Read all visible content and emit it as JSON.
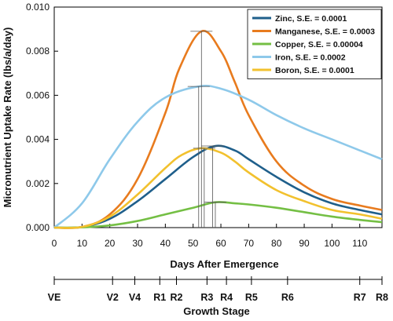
{
  "chart_data": {
    "type": "line",
    "xlabel": "Days After Emergence",
    "ylabel": "Micronutrient Uptake Rate (lbs/a/day)",
    "xlim": [
      0,
      118
    ],
    "ylim": [
      0,
      0.01
    ],
    "x_ticks": [
      0,
      10,
      20,
      30,
      40,
      50,
      60,
      70,
      80,
      90,
      100,
      110
    ],
    "y_ticks": [
      "0.000",
      "0.002",
      "0.004",
      "0.006",
      "0.008",
      "0.010"
    ],
    "y_tick_values": [
      0,
      0.002,
      0.004,
      0.006,
      0.008,
      0.01
    ],
    "legend_position": "top-right",
    "grid": false,
    "series": [
      {
        "name": "Zinc, S.E. = 0.0001",
        "color": "#1f5f8b",
        "x": [
          0,
          10,
          20,
          30,
          40,
          50,
          58,
          65,
          70,
          80,
          90,
          100,
          110,
          118
        ],
        "y": [
          0,
          3e-05,
          0.0004,
          0.0012,
          0.0022,
          0.0032,
          0.0037,
          0.0035,
          0.0031,
          0.0023,
          0.0016,
          0.0011,
          0.0008,
          0.0006
        ]
      },
      {
        "name": "Manganese, S.E. = 0.0003",
        "color": "#e87b1e",
        "x": [
          0,
          10,
          20,
          30,
          40,
          45,
          53,
          60,
          65,
          70,
          80,
          90,
          100,
          110,
          118
        ],
        "y": [
          0,
          3e-05,
          0.0006,
          0.0022,
          0.0052,
          0.0072,
          0.0089,
          0.008,
          0.0066,
          0.0051,
          0.003,
          0.0019,
          0.0013,
          0.001,
          0.0008
        ]
      },
      {
        "name": "Copper, S.E. = 0.00004",
        "color": "#74bf44",
        "x": [
          0,
          10,
          20,
          30,
          40,
          50,
          58,
          65,
          70,
          80,
          90,
          100,
          110,
          118
        ],
        "y": [
          0,
          1e-05,
          0.0001,
          0.0003,
          0.0006,
          0.0009,
          0.00115,
          0.0011,
          0.00105,
          0.0009,
          0.0007,
          0.0005,
          0.00035,
          0.00025
        ]
      },
      {
        "name": "Iron, S.E. = 0.0002",
        "color": "#8ec9ea",
        "x": [
          0,
          10,
          20,
          30,
          40,
          52,
          60,
          70,
          80,
          90,
          100,
          110,
          118
        ],
        "y": [
          0,
          0.0011,
          0.0031,
          0.0048,
          0.0059,
          0.0064,
          0.0063,
          0.0058,
          0.0051,
          0.0045,
          0.004,
          0.0035,
          0.0031
        ]
      },
      {
        "name": "Boron, S.E. = 0.0001",
        "color": "#f2c12e",
        "x": [
          0,
          10,
          20,
          30,
          40,
          46,
          53,
          60,
          65,
          70,
          80,
          90,
          100,
          110,
          118
        ],
        "y": [
          0,
          3e-05,
          0.0005,
          0.0015,
          0.0027,
          0.0033,
          0.0036,
          0.0034,
          0.003,
          0.0025,
          0.0017,
          0.0012,
          0.0008,
          0.0006,
          0.0004
        ]
      }
    ],
    "peak_markers": [
      {
        "day": 52,
        "value": 0.0064,
        "series": "Iron"
      },
      {
        "day": 53,
        "value": 0.0089,
        "series": "Manganese"
      },
      {
        "day": 54,
        "value": 0.0036,
        "series": "Boron"
      },
      {
        "day": 57,
        "value": 0.0037,
        "series": "Zinc"
      },
      {
        "day": 58,
        "value": 0.00115,
        "series": "Copper"
      }
    ],
    "growth_stage": {
      "title": "Growth Stage",
      "stages": [
        {
          "label": "VE",
          "day": 0
        },
        {
          "label": "V2",
          "day": 21
        },
        {
          "label": "V4",
          "day": 29
        },
        {
          "label": "R1",
          "day": 38
        },
        {
          "label": "R2",
          "day": 44
        },
        {
          "label": "R3",
          "day": 55
        },
        {
          "label": "R4",
          "day": 62
        },
        {
          "label": "R5",
          "day": 71
        },
        {
          "label": "R6",
          "day": 84
        },
        {
          "label": "R7",
          "day": 110
        },
        {
          "label": "R8",
          "day": 118
        }
      ]
    }
  }
}
